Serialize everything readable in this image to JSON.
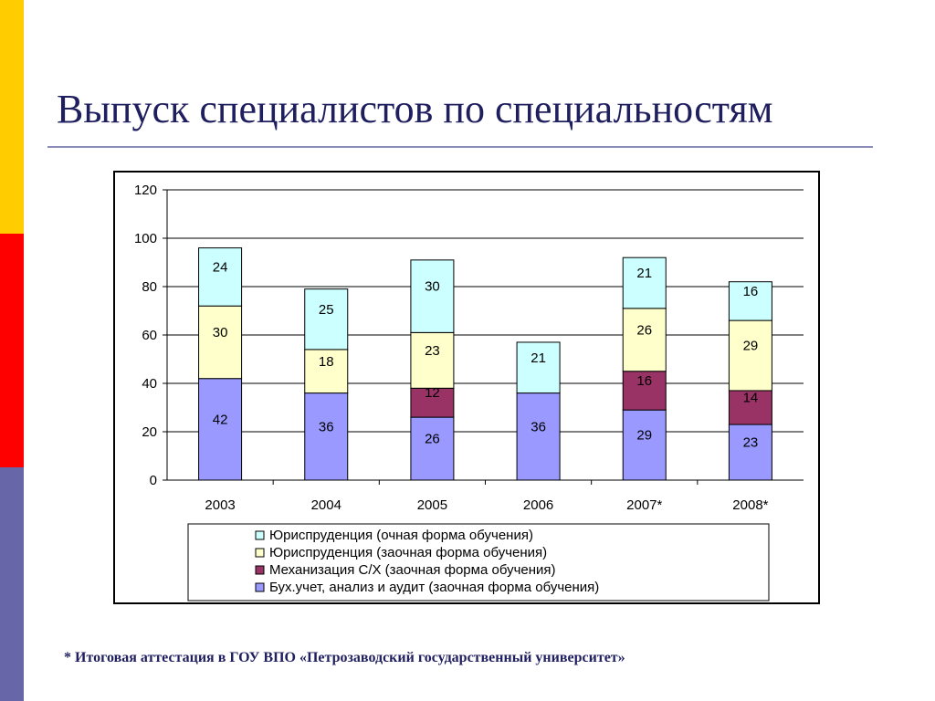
{
  "slide": {
    "title": "Выпуск специалистов по специальностям",
    "footnote": "* Итоговая аттестация в ГОУ ВПО «Петрозаводский государственный университет»"
  },
  "chart_data": {
    "type": "bar",
    "stacked": true,
    "categories": [
      "2003",
      "2004",
      "2005",
      "2006",
      "2007*",
      "2008*"
    ],
    "series": [
      {
        "name": "Бух.учет, анализ и аудит (заочная форма обучения)",
        "color": "#9999ff",
        "values": [
          42,
          36,
          26,
          36,
          29,
          23
        ]
      },
      {
        "name": "Механизация С/Х (заочная форма обучения)",
        "color": "#993366",
        "values": [
          null,
          null,
          12,
          null,
          16,
          14
        ]
      },
      {
        "name": "Юриспруденция (заочная форма обучения)",
        "color": "#ffffcc",
        "values": [
          30,
          18,
          23,
          null,
          26,
          29
        ]
      },
      {
        "name": "Юриспруденция (очная форма обучения)",
        "color": "#ccffff",
        "values": [
          24,
          25,
          30,
          21,
          21,
          16
        ]
      }
    ],
    "legend_order": [
      3,
      2,
      1,
      0
    ],
    "ylim": [
      0,
      120
    ],
    "yticks": [
      "0",
      "20",
      "40",
      "60",
      "80",
      "100",
      "120"
    ],
    "grid": true,
    "legend_position": "bottom"
  }
}
